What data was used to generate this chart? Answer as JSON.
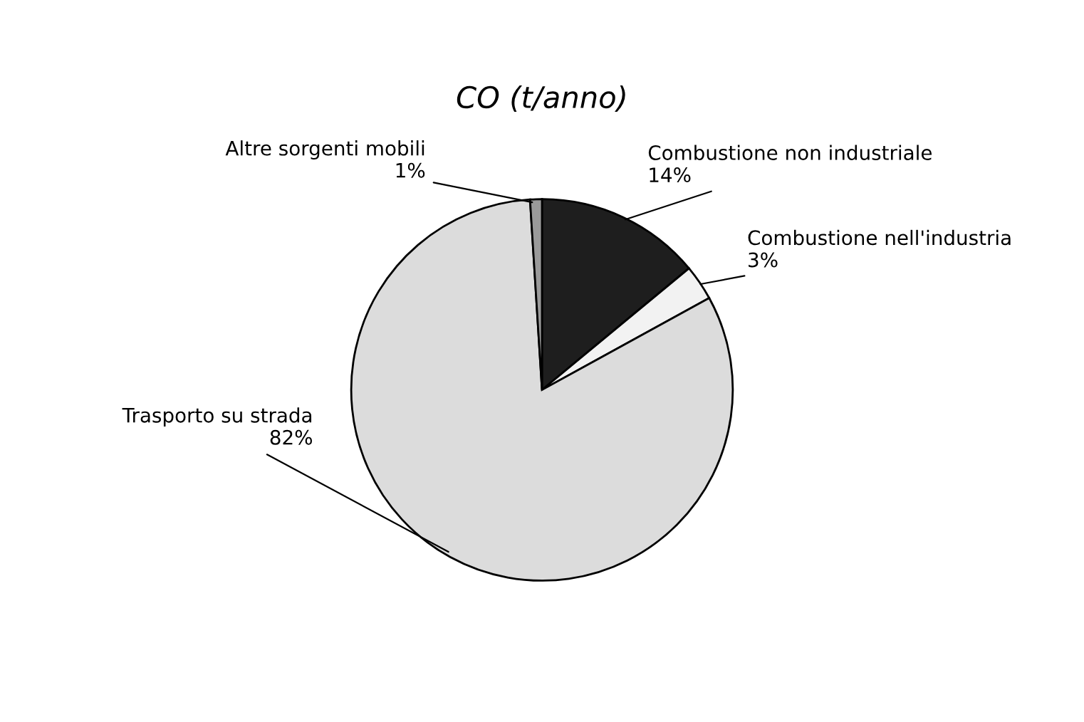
{
  "chart_data": {
    "type": "pie",
    "title": "CO (t/anno)",
    "categories": [
      "Combustione non industriale",
      "Combustione nell'industria",
      "Trasporto su strada",
      "Altre sorgenti mobili"
    ],
    "values": [
      14,
      3,
      82,
      1
    ],
    "value_labels": [
      "14%",
      "3%",
      "82%",
      "1%"
    ],
    "colors": [
      "#1e1e1e",
      "#f2f2f2",
      "#dcdcdc",
      "#9a9a9a"
    ]
  }
}
